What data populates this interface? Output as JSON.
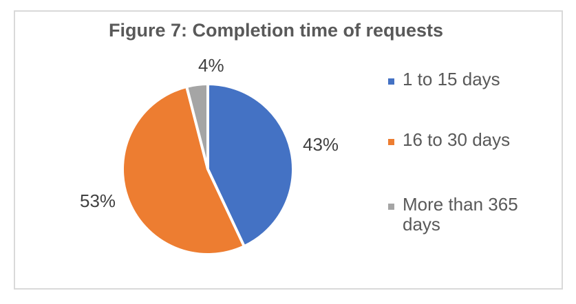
{
  "figure": {
    "title": "Figure 7: Completion time of requests"
  },
  "chart_data": {
    "type": "pie",
    "title": "Figure 7: Completion time of requests",
    "categories": [
      "1 to 15 days",
      "16 to 30 days",
      "More than 365 days"
    ],
    "values": [
      43,
      53,
      4
    ],
    "unit": "%",
    "data_labels": [
      "43%",
      "53%",
      "4%"
    ],
    "colors": [
      "#4472C4",
      "#ED7D31",
      "#A5A5A5"
    ],
    "slice_border_color": "#FFFFFF",
    "start_angle_deg": 0,
    "direction": "clockwise",
    "legend_position": "right"
  },
  "legend": {
    "items": [
      {
        "label": "1 to 15 days",
        "color": "#4472C4"
      },
      {
        "label": "16 to 30 days",
        "color": "#ED7D31"
      },
      {
        "label": "More than 365 days",
        "color": "#A5A5A5"
      }
    ]
  },
  "styles": {
    "background": "#FFFFFF",
    "frame_border_color": "#D9D9D9",
    "title_color": "#595959",
    "legend_text_color": "#595959",
    "data_label_color": "#404040"
  }
}
